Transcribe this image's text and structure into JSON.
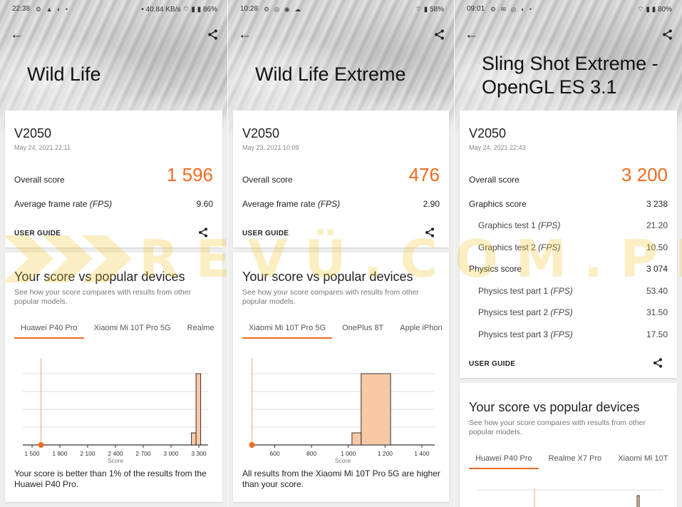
{
  "panels": [
    {
      "status": {
        "time": "22:38",
        "icons": "⚙ ▲ ◐ •",
        "right": "• 40.84 KB/s ⌔ ▮ ▮ 86%"
      },
      "title": "Wild Life",
      "device": "V2050",
      "date": "May 24, 2021 22:11",
      "overall_label": "Overall score",
      "overall_value": "1 596",
      "rows": [
        {
          "label": "Average frame rate",
          "unit": "(FPS)",
          "value": "9.60"
        }
      ],
      "user_guide": "USER GUIDE",
      "section_title": "Your score vs popular devices",
      "section_desc": "See how your score compares with results from other popular models.",
      "tabs": [
        "Huawei P40 Pro",
        "Xiaomi Mi 10T Pro 5G",
        "Realme"
      ],
      "result_text": "Your score is better than 1% of the results from the Huawei P40 Pro.",
      "chart_data": {
        "type": "bar",
        "xlabel": "Score",
        "xlim": [
          1400,
          3400
        ],
        "x_ticks": [
          1500,
          1800,
          2100,
          2400,
          2700,
          3000,
          3300
        ],
        "tick_labels": [
          "1 500",
          "1 800",
          "2 100",
          "2 400",
          "2 700",
          "3 000",
          "3 300"
        ],
        "bins": [
          {
            "x0": 3220,
            "x1": 3270,
            "value": 0.17
          },
          {
            "x0": 3270,
            "x1": 3320,
            "value": 1.0
          }
        ],
        "ylim": [
          0,
          1.1
        ],
        "your_score": 1596
      }
    },
    {
      "status": {
        "time": "10:28",
        "icons": "⚙ ◎ ◉ ☁",
        "right": "⌔ ▮ 58%"
      },
      "title": "Wild Life Extreme",
      "device": "V2050",
      "date": "May 23, 2021 10:09",
      "overall_label": "Overall score",
      "overall_value": "476",
      "rows": [
        {
          "label": "Average frame rate",
          "unit": "(FPS)",
          "value": "2.90"
        }
      ],
      "user_guide": "USER GUIDE",
      "section_title": "Your score vs popular devices",
      "section_desc": "See how your score compares with results from other popular models.",
      "tabs": [
        "Xiaomi Mi 10T Pro 5G",
        "OnePlus 8T",
        "Apple iPhon"
      ],
      "result_text": "All results from the Xiaomi Mi 10T Pro 5G are higher than your score.",
      "chart_data": {
        "type": "bar",
        "xlabel": "Score",
        "xlim": [
          470,
          1470
        ],
        "x_ticks": [
          600,
          800,
          1000,
          1200,
          1400
        ],
        "tick_labels": [
          "600",
          "800",
          "1 000",
          "1 200",
          "1 400"
        ],
        "bins": [
          {
            "x0": 1020,
            "x1": 1070,
            "value": 0.17
          },
          {
            "x0": 1070,
            "x1": 1230,
            "value": 1.0
          }
        ],
        "ylim": [
          0,
          1.1
        ],
        "your_score": 476
      }
    },
    {
      "status": {
        "time": "09:01",
        "icons": "⚙ ✉ ◎ ◐ •",
        "right": "⌔ ▮ ▮ 80%"
      },
      "title": "Sling Shot Extreme - OpenGL ES 3.1",
      "device": "V2050",
      "date": "May 24, 2021 22:43",
      "overall_label": "Overall score",
      "overall_value": "3 200",
      "graphics_label": "Graphics score",
      "graphics_value": "3 238",
      "graphics_tests": [
        {
          "label": "Graphics test 1",
          "unit": "(FPS)",
          "value": "21.20"
        },
        {
          "label": "Graphics test 2",
          "unit": "(FPS)",
          "value": "10.50"
        }
      ],
      "physics_label": "Physics score",
      "physics_value": "3 074",
      "physics_tests": [
        {
          "label": "Physics test part 1",
          "unit": "(FPS)",
          "value": "53.40"
        },
        {
          "label": "Physics test part 2",
          "unit": "(FPS)",
          "value": "31.50"
        },
        {
          "label": "Physics test part 3",
          "unit": "(FPS)",
          "value": "17.50"
        }
      ],
      "user_guide": "USER GUIDE",
      "section_title": "Your score vs popular devices",
      "section_desc": "See how your score compares with results from other popular models.",
      "tabs": [
        "Huawei P40 Pro",
        "Realme X7 Pro",
        "Xiaomi Mi 10T"
      ]
    }
  ],
  "watermark": "REVÜ.COM.PH",
  "colors": {
    "accent": "#ef6c1f",
    "bar_fill": "#f9c9a6",
    "watermark": "#f3c62a"
  }
}
